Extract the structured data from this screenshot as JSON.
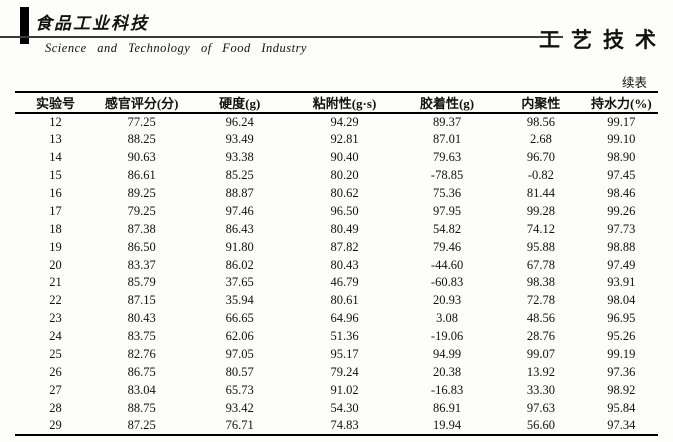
{
  "masthead": {
    "journal_name_cn": "食品工业科技",
    "journal_name_en": "Science and Technology of Food Industry",
    "section_title": "工艺技术"
  },
  "table": {
    "continued_label": "续表",
    "headers": [
      "实验号",
      "感官评分(分)",
      "硬度(g)",
      "粘附性(g·s)",
      "胶着性(g)",
      "内聚性",
      "持水力(%)"
    ],
    "rows": [
      [
        "12",
        "77.25",
        "96.24",
        "94.29",
        "89.37",
        "98.56",
        "99.17"
      ],
      [
        "13",
        "88.25",
        "93.49",
        "92.81",
        "87.01",
        "2.68",
        "99.10"
      ],
      [
        "14",
        "90.63",
        "93.38",
        "90.40",
        "79.63",
        "96.70",
        "98.90"
      ],
      [
        "15",
        "86.61",
        "85.25",
        "80.20",
        "-78.85",
        "-0.82",
        "97.45"
      ],
      [
        "16",
        "89.25",
        "88.87",
        "80.62",
        "75.36",
        "81.44",
        "98.46"
      ],
      [
        "17",
        "79.25",
        "97.46",
        "96.50",
        "97.95",
        "99.28",
        "99.26"
      ],
      [
        "18",
        "87.38",
        "86.43",
        "80.49",
        "54.82",
        "74.12",
        "97.73"
      ],
      [
        "19",
        "86.50",
        "91.80",
        "87.82",
        "79.46",
        "95.88",
        "98.88"
      ],
      [
        "20",
        "83.37",
        "86.02",
        "80.43",
        "-44.60",
        "67.78",
        "97.49"
      ],
      [
        "21",
        "85.79",
        "37.65",
        "46.79",
        "-60.83",
        "98.38",
        "93.91"
      ],
      [
        "22",
        "87.15",
        "35.94",
        "80.61",
        "20.93",
        "72.78",
        "98.04"
      ],
      [
        "23",
        "80.43",
        "66.65",
        "64.96",
        "3.08",
        "48.56",
        "96.95"
      ],
      [
        "24",
        "83.75",
        "62.06",
        "51.36",
        "-19.06",
        "28.76",
        "95.26"
      ],
      [
        "25",
        "82.76",
        "97.05",
        "95.17",
        "94.99",
        "99.07",
        "99.19"
      ],
      [
        "26",
        "86.75",
        "80.57",
        "79.24",
        "20.38",
        "13.92",
        "97.36"
      ],
      [
        "27",
        "83.04",
        "65.73",
        "91.02",
        "-16.83",
        "33.30",
        "98.92"
      ],
      [
        "28",
        "88.75",
        "93.42",
        "54.30",
        "86.91",
        "97.63",
        "95.84"
      ],
      [
        "29",
        "87.25",
        "76.71",
        "74.83",
        "19.94",
        "56.60",
        "97.34"
      ]
    ]
  }
}
